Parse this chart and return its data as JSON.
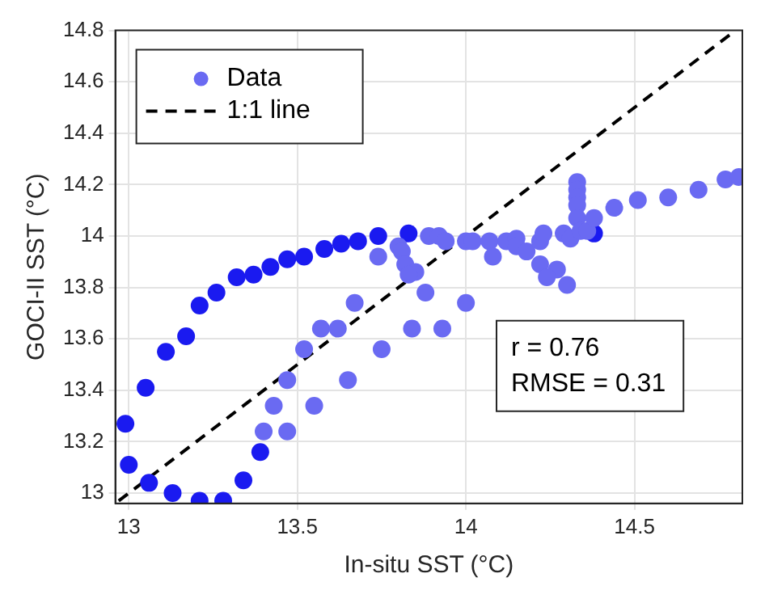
{
  "chart_data": {
    "type": "scatter",
    "xlabel": "In-situ SST (°C)",
    "ylabel": "GOCI-II SST (°C)",
    "xlim": [
      12.96,
      14.82
    ],
    "ylim": [
      12.96,
      14.8
    ],
    "xticks": [
      13,
      13.5,
      14,
      14.5
    ],
    "yticks": [
      13,
      13.2,
      13.4,
      13.6,
      13.8,
      14,
      14.2,
      14.4,
      14.6,
      14.8
    ],
    "grid": true,
    "legend": "top left",
    "marker": "circle",
    "annotations": [
      "r = 0.76",
      "RMSE = 0.31"
    ],
    "series": [
      {
        "name": "Data",
        "x": [
          13.26,
          13.32,
          13.37,
          13.42,
          13.47,
          13.52,
          13.58,
          13.63,
          13.68,
          13.74,
          13.83,
          12.99,
          13.0,
          13.05,
          13.06,
          13.11,
          13.13,
          13.17,
          13.21,
          13.21,
          13.28,
          13.34,
          13.39,
          14.38,
          13.74,
          13.8,
          13.81,
          13.82,
          13.85,
          13.83,
          13.89,
          13.92,
          13.94,
          14.0,
          14.02,
          14.07,
          14.08,
          14.12,
          14.15,
          14.15,
          14.18,
          14.22,
          14.22,
          14.23,
          14.27,
          14.24,
          14.3,
          14.29,
          14.31,
          14.33,
          14.33,
          14.33,
          14.33,
          14.33,
          14.34,
          14.36,
          14.38,
          14.44,
          14.51,
          14.6,
          14.69,
          14.77,
          14.81,
          13.4,
          13.43,
          13.47,
          13.47,
          13.52,
          13.55,
          13.57,
          13.62,
          13.65,
          13.67,
          13.75,
          13.84,
          13.88,
          13.93,
          14.0
        ],
        "values": [
          13.78,
          13.84,
          13.85,
          13.88,
          13.91,
          13.92,
          13.95,
          13.97,
          13.98,
          14.0,
          14.01,
          13.27,
          13.11,
          13.41,
          13.04,
          13.55,
          13.0,
          13.61,
          13.73,
          12.97,
          12.97,
          13.05,
          13.16,
          14.01,
          13.92,
          13.96,
          13.94,
          13.89,
          13.86,
          13.85,
          14.0,
          14.0,
          13.98,
          13.98,
          13.98,
          13.98,
          13.92,
          13.98,
          13.99,
          13.96,
          13.94,
          13.89,
          13.98,
          14.01,
          13.87,
          13.84,
          13.81,
          14.01,
          13.99,
          14.21,
          14.18,
          14.15,
          14.12,
          14.07,
          14.02,
          14.02,
          14.07,
          14.11,
          14.14,
          14.15,
          14.18,
          14.22,
          14.23,
          13.24,
          13.34,
          13.24,
          13.44,
          13.56,
          13.34,
          13.64,
          13.64,
          13.44,
          13.74,
          13.56,
          13.64,
          13.78,
          13.64,
          13.74
        ],
        "colors": [
          "#1a1af0",
          "#1a1af0",
          "#1a1af0",
          "#1a1af0",
          "#1a1af0",
          "#1a1af0",
          "#1a1af0",
          "#1a1af0",
          "#1a1af0",
          "#1a1af0",
          "#1a1af0",
          "#1a1af0",
          "#1a1af0",
          "#1a1af0",
          "#1a1af0",
          "#1a1af0",
          "#1a1af0",
          "#1a1af0",
          "#1a1af0",
          "#1a1af0",
          "#1a1af0",
          "#1a1af0",
          "#1a1af0",
          "#1a1af0",
          "#6a6af2",
          "#6a6af2",
          "#6a6af2",
          "#6a6af2",
          "#6a6af2",
          "#6a6af2",
          "#6a6af2",
          "#6a6af2",
          "#6a6af2",
          "#6a6af2",
          "#6a6af2",
          "#6a6af2",
          "#6a6af2",
          "#6a6af2",
          "#6a6af2",
          "#6a6af2",
          "#6a6af2",
          "#6a6af2",
          "#6a6af2",
          "#6a6af2",
          "#6a6af2",
          "#6a6af2",
          "#6a6af2",
          "#6a6af2",
          "#6a6af2",
          "#6a6af2",
          "#6a6af2",
          "#6a6af2",
          "#6a6af2",
          "#6a6af2",
          "#6a6af2",
          "#6a6af2",
          "#6a6af2",
          "#6a6af2",
          "#6a6af2",
          "#6a6af2",
          "#6a6af2",
          "#6a6af2",
          "#6a6af2",
          "#6a6af2",
          "#6a6af2",
          "#6a6af2",
          "#6a6af2",
          "#6a6af2",
          "#6a6af2",
          "#6a6af2",
          "#6a6af2",
          "#6a6af2",
          "#6a6af2",
          "#6a6af2",
          "#6a6af2",
          "#6a6af2",
          "#6a6af2",
          "#6a6af2"
        ],
        "color": "#6a6af2"
      },
      {
        "name": "1:1 line",
        "type": "line",
        "color": "#000000",
        "line_style": "dashed",
        "marker": "none",
        "x": [
          12.97,
          14.8
        ],
        "values": [
          12.97,
          14.8
        ]
      }
    ]
  }
}
